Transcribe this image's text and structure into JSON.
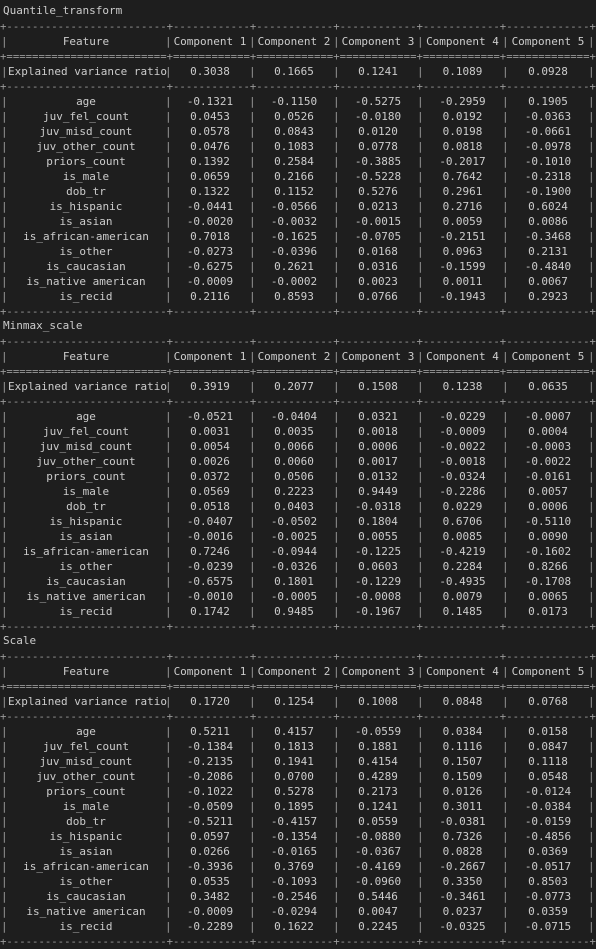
{
  "headers": [
    "Feature",
    "Component 1",
    "Component 2",
    "Component 3",
    "Component 4",
    "Component 5"
  ],
  "evr_label": "Explained variance ratio",
  "sections": [
    {
      "title": "Quantile_transform",
      "evr": [
        "0.3038",
        "0.1665",
        "0.1241",
        "0.1089",
        "0.0928"
      ],
      "rows": [
        [
          "age",
          "-0.1321",
          "-0.1150",
          "-0.5275",
          "-0.2959",
          "0.1905"
        ],
        [
          "juv_fel_count",
          "0.0453",
          "0.0526",
          "-0.0180",
          "0.0192",
          "-0.0363"
        ],
        [
          "juv_misd_count",
          "0.0578",
          "0.0843",
          "0.0120",
          "0.0198",
          "-0.0661"
        ],
        [
          "juv_other_count",
          "0.0476",
          "0.1083",
          "0.0778",
          "0.0818",
          "-0.0978"
        ],
        [
          "priors_count",
          "0.1392",
          "0.2584",
          "-0.3885",
          "-0.2017",
          "-0.1010"
        ],
        [
          "is_male",
          "0.0659",
          "0.2166",
          "-0.5228",
          "0.7642",
          "-0.2318"
        ],
        [
          "dob_tr",
          "0.1322",
          "0.1152",
          "0.5276",
          "0.2961",
          "-0.1900"
        ],
        [
          "is_hispanic",
          "-0.0441",
          "-0.0566",
          "0.0213",
          "0.2716",
          "0.6024"
        ],
        [
          "is_asian",
          "-0.0020",
          "-0.0032",
          "-0.0015",
          "0.0059",
          "0.0086"
        ],
        [
          "is_african-american",
          "0.7018",
          "-0.1625",
          "-0.0705",
          "-0.2151",
          "-0.3468"
        ],
        [
          "is_other",
          "-0.0273",
          "-0.0396",
          "0.0168",
          "0.0963",
          "0.2131"
        ],
        [
          "is_caucasian",
          "-0.6275",
          "0.2621",
          "0.0316",
          "-0.1599",
          "-0.4840"
        ],
        [
          "is_native american",
          "-0.0009",
          "-0.0002",
          "0.0023",
          "0.0011",
          "0.0067"
        ],
        [
          "is_recid",
          "0.2116",
          "0.8593",
          "0.0766",
          "-0.1943",
          "0.2923"
        ]
      ]
    },
    {
      "title": "Minmax_scale",
      "evr": [
        "0.3919",
        "0.2077",
        "0.1508",
        "0.1238",
        "0.0635"
      ],
      "rows": [
        [
          "age",
          "-0.0521",
          "-0.0404",
          "0.0321",
          "-0.0229",
          "-0.0007"
        ],
        [
          "juv_fel_count",
          "0.0031",
          "0.0035",
          "0.0018",
          "-0.0009",
          "0.0004"
        ],
        [
          "juv_misd_count",
          "0.0054",
          "0.0066",
          "0.0006",
          "-0.0022",
          "-0.0003"
        ],
        [
          "juv_other_count",
          "0.0026",
          "0.0060",
          "0.0017",
          "-0.0018",
          "-0.0022"
        ],
        [
          "priors_count",
          "0.0372",
          "0.0506",
          "0.0132",
          "-0.0324",
          "-0.0161"
        ],
        [
          "is_male",
          "0.0569",
          "0.2223",
          "0.9449",
          "-0.2286",
          "0.0057"
        ],
        [
          "dob_tr",
          "0.0518",
          "0.0403",
          "-0.0318",
          "0.0229",
          "0.0006"
        ],
        [
          "is_hispanic",
          "-0.0407",
          "-0.0502",
          "0.1804",
          "0.6706",
          "-0.5110"
        ],
        [
          "is_asian",
          "-0.0016",
          "-0.0025",
          "0.0055",
          "0.0085",
          "0.0090"
        ],
        [
          "is_african-american",
          "0.7246",
          "-0.0944",
          "-0.1225",
          "-0.4219",
          "-0.1602"
        ],
        [
          "is_other",
          "-0.0239",
          "-0.0326",
          "0.0603",
          "0.2284",
          "0.8266"
        ],
        [
          "is_caucasian",
          "-0.6575",
          "0.1801",
          "-0.1229",
          "-0.4935",
          "-0.1708"
        ],
        [
          "is_native american",
          "-0.0010",
          "-0.0005",
          "-0.0008",
          "0.0079",
          "0.0065"
        ],
        [
          "is_recid",
          "0.1742",
          "0.9485",
          "-0.1967",
          "0.1485",
          "0.0173"
        ]
      ]
    },
    {
      "title": "Scale",
      "evr": [
        "0.1720",
        "0.1254",
        "0.1008",
        "0.0848",
        "0.0768"
      ],
      "rows": [
        [
          "age",
          "0.5211",
          "0.4157",
          "-0.0559",
          "0.0384",
          "0.0158"
        ],
        [
          "juv_fel_count",
          "-0.1384",
          "0.1813",
          "0.1881",
          "0.1116",
          "0.0847"
        ],
        [
          "juv_misd_count",
          "-0.2135",
          "0.1941",
          "0.4154",
          "0.1507",
          "0.1118"
        ],
        [
          "juv_other_count",
          "-0.2086",
          "0.0700",
          "0.4289",
          "0.1509",
          "0.0548"
        ],
        [
          "priors_count",
          "-0.1022",
          "0.5278",
          "0.2173",
          "0.0126",
          "-0.0124"
        ],
        [
          "is_male",
          "-0.0509",
          "0.1895",
          "0.1241",
          "0.3011",
          "-0.0384"
        ],
        [
          "dob_tr",
          "-0.5211",
          "-0.4157",
          "0.0559",
          "-0.0381",
          "-0.0159"
        ],
        [
          "is_hispanic",
          "0.0597",
          "-0.1354",
          "-0.0880",
          "0.7326",
          "-0.4856"
        ],
        [
          "is_asian",
          "0.0266",
          "-0.0165",
          "-0.0367",
          "0.0828",
          "0.0369"
        ],
        [
          "is_african-american",
          "-0.3936",
          "0.3769",
          "-0.4169",
          "-0.2667",
          "-0.0517"
        ],
        [
          "is_other",
          "0.0535",
          "-0.1093",
          "-0.0960",
          "0.3350",
          "0.8503"
        ],
        [
          "is_caucasian",
          "0.3482",
          "-0.2546",
          "0.5446",
          "-0.3461",
          "-0.0773"
        ],
        [
          "is_native american",
          "-0.0009",
          "-0.0294",
          "0.0047",
          "0.0237",
          "0.0359"
        ],
        [
          "is_recid",
          "-0.2289",
          "0.1622",
          "0.2245",
          "-0.0325",
          "-0.0715"
        ]
      ]
    }
  ]
}
